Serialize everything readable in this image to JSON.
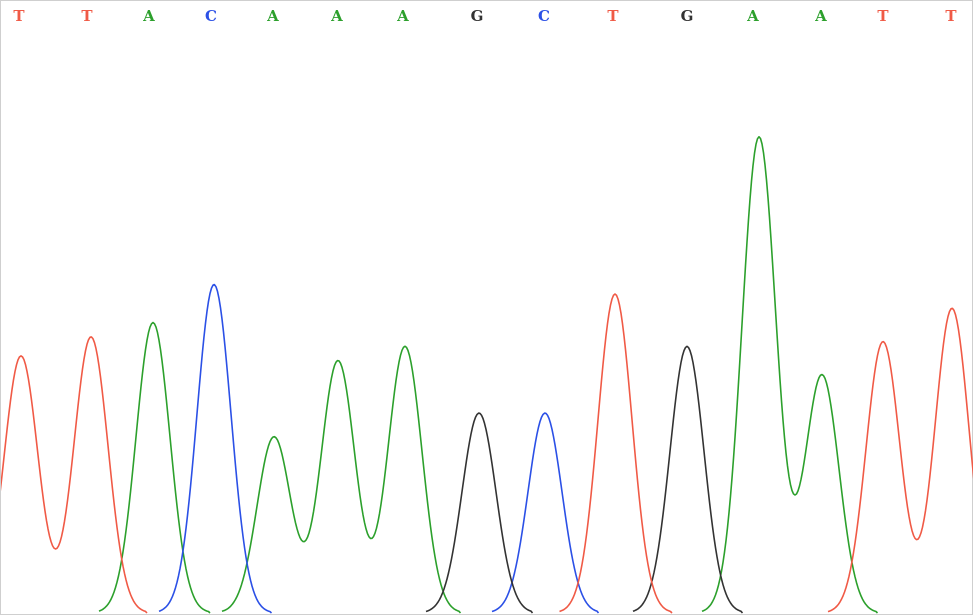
{
  "chart_data": {
    "type": "line",
    "title": "",
    "xlabel": "",
    "ylabel": "",
    "grid": false,
    "base_colors": {
      "A": "#2ca02c",
      "C": "#2b50e6",
      "G": "#333333",
      "T": "#f05a46"
    },
    "bases": [
      "T",
      "T",
      "A",
      "C",
      "A",
      "A",
      "A",
      "G",
      "C",
      "T",
      "G",
      "A",
      "A",
      "T",
      "T"
    ],
    "peaks": [
      {
        "base": "T",
        "height": 0.54
      },
      {
        "base": "T",
        "height": 0.58
      },
      {
        "base": "A",
        "height": 0.61
      },
      {
        "base": "C",
        "height": 0.69
      },
      {
        "base": "A",
        "height": 0.37
      },
      {
        "base": "A",
        "height": 0.53
      },
      {
        "base": "A",
        "height": 0.56
      },
      {
        "base": "G",
        "height": 0.42
      },
      {
        "base": "C",
        "height": 0.42
      },
      {
        "base": "T",
        "height": 0.67
      },
      {
        "base": "G",
        "height": 0.56
      },
      {
        "base": "A",
        "height": 1.0
      },
      {
        "base": "A",
        "height": 0.5
      },
      {
        "base": "T",
        "height": 0.57
      },
      {
        "base": "T",
        "height": 0.64
      }
    ]
  }
}
